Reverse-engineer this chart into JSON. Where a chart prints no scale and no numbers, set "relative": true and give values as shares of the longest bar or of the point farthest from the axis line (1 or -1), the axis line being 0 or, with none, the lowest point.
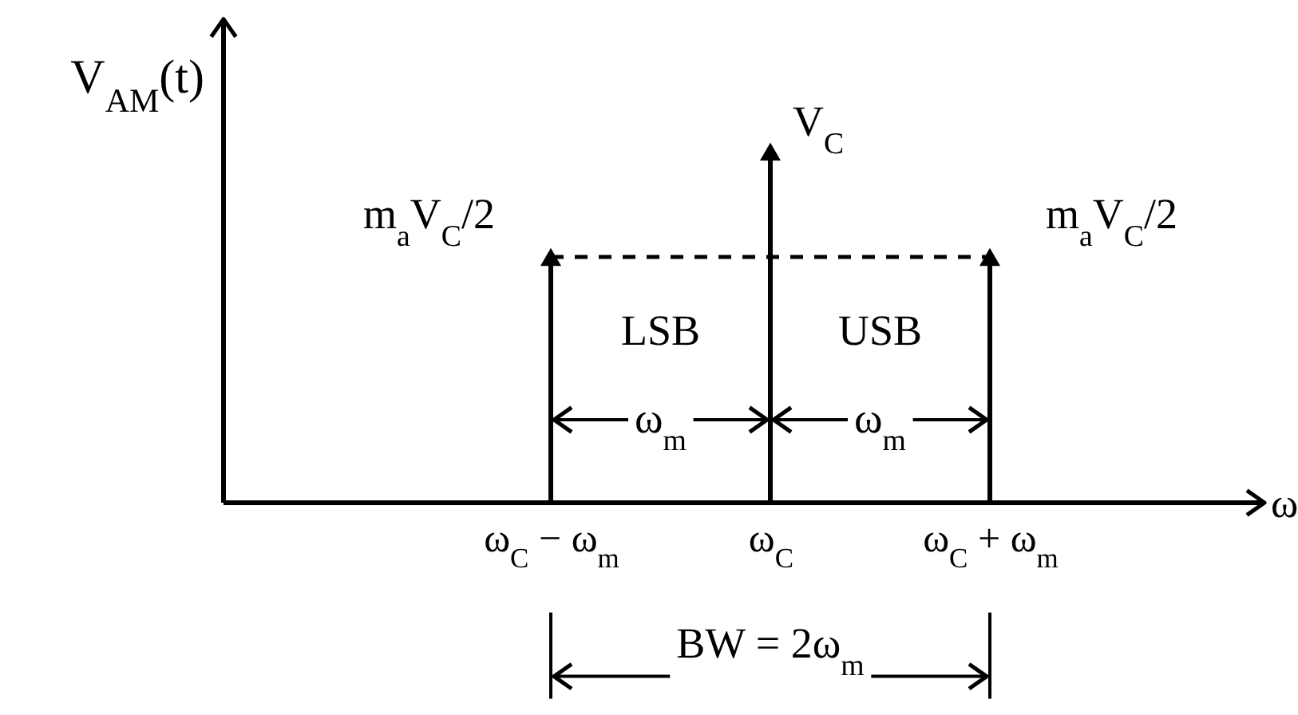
{
  "chart_data": {
    "type": "lollipop",
    "relative": true,
    "marker": "triangle",
    "categories": [
      "ω$_{C}$ − ω$_{m}$",
      "ω$_{C}$",
      "ω$_{C}$ + ω$_{m}$"
    ],
    "series": [
      {
        "color": "#000000",
        "values": [
          0.7,
          1,
          0.7
        ]
      }
    ],
    "value_labels": [
      "m$_{a}$V$_{C}$/2",
      "V$_{C}$",
      "m$_{a}$V$_{C}$/2"
    ],
    "ref_lines": [
      {
        "axis": "y",
        "value": 0.7,
        "line_style": "dashed",
        "color": "#000000"
      }
    ],
    "annotations": [
      "LSB",
      "USB",
      "ω$_{m}$",
      "ω$_{m}$",
      "BW = 2ω$_{m}$",
      "V$_{AM}$(t)",
      "ω"
    ]
  }
}
